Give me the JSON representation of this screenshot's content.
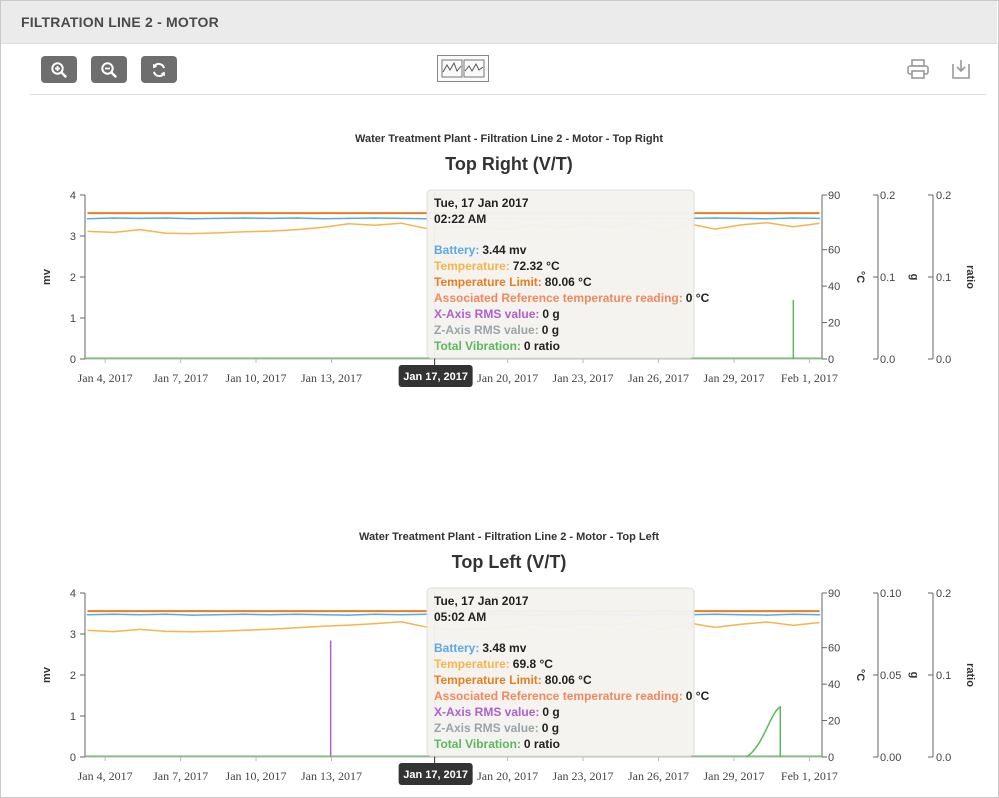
{
  "header": {
    "title": "FILTRATION LINE 2 - MOTOR"
  },
  "toolbar": {
    "zoom_in_icon": "zoom-in-icon",
    "zoom_out_icon": "zoom-out-icon",
    "refresh_icon": "refresh-icon",
    "chart_mode_icon": "line-chart-icon",
    "print_icon": "printer-icon",
    "download_icon": "download-icon"
  },
  "colors": {
    "battery": "#5aa9e6",
    "temperature": "#f6b44a",
    "temp_limit": "#e67e22",
    "reference": "#f08a5d",
    "x_axis": "#b060c8",
    "z_axis": "#9aa4a8",
    "vibration": "#5cb85c",
    "button_bg": "#6e6e6e"
  },
  "chart_data": [
    {
      "type": "line",
      "subtitle": "Water Treatment Plant - Filtration Line 2 - Motor - Top Right",
      "title": "Top Right (V/T)",
      "x_ticks": [
        "Jan 4, 2017",
        "Jan 7, 2017",
        "Jan 10, 2017",
        "Jan 13, 2017",
        "Jan 20, 2017",
        "Jan 23, 2017",
        "Jan 26, 2017",
        "Jan 29, 2017",
        "Feb 1, 2017"
      ],
      "crosshair_label": "Jan 17, 2017",
      "axes": {
        "mv": {
          "label": "mv",
          "range": [
            0,
            4
          ],
          "ticks": [
            "0",
            "1",
            "2",
            "3",
            "4"
          ]
        },
        "celsius": {
          "label": "°C",
          "range": [
            0,
            90
          ],
          "ticks": [
            "0",
            "20",
            "40",
            "60",
            "90"
          ]
        },
        "g": {
          "label": "g",
          "range": [
            0,
            0.2
          ],
          "ticks": [
            "0.0",
            "0.1",
            "0.2"
          ]
        },
        "ratio": {
          "label": "ratio",
          "range": [
            0,
            0.2
          ],
          "ticks": [
            "0.0",
            "0.1",
            "0.2"
          ]
        }
      },
      "series": [
        {
          "name": "Battery",
          "axis": "mv",
          "values": [
            3.42,
            3.44,
            3.43,
            3.44,
            3.42,
            3.43,
            3.44,
            3.43,
            3.44,
            3.42,
            3.43,
            3.44,
            3.43,
            3.42,
            3.44,
            3.43,
            3.44,
            3.42,
            3.43,
            3.44,
            3.43,
            3.42,
            3.44,
            3.43,
            3.44,
            3.43,
            3.42,
            3.44,
            3.43
          ]
        },
        {
          "name": "Temperature",
          "axis": "celsius",
          "values": [
            70,
            69.5,
            71,
            69,
            68.8,
            69.2,
            69.8,
            70.2,
            71,
            72.2,
            74.2,
            73.4,
            74.5,
            71.5,
            72.3,
            72.4,
            71.2,
            73.6,
            72,
            73.8,
            72.4,
            74.6,
            69.8,
            74.2,
            71.3,
            73.6,
            74.8,
            72.6,
            74.4
          ]
        },
        {
          "name": "Temperature Limit",
          "axis": "celsius",
          "values": [
            80.06,
            80.06,
            80.06,
            80.06,
            80.06,
            80.06,
            80.06,
            80.06,
            80.06,
            80.06,
            80.06,
            80.06,
            80.06,
            80.06,
            80.06,
            80.06,
            80.06,
            80.06,
            80.06,
            80.06,
            80.06,
            80.06,
            80.06,
            80.06,
            80.06,
            80.06,
            80.06,
            80.06,
            80.06
          ]
        },
        {
          "name": "Total Vibration",
          "axis": "ratio",
          "spike": {
            "date_index": 27,
            "value": 0.072
          }
        }
      ],
      "tooltip": {
        "date": "Tue, 17 Jan 2017",
        "time": "02:22 AM",
        "rows": [
          {
            "label": "Battery:",
            "value": "3.44 mv",
            "color": "#5aa9e6"
          },
          {
            "label": "Temperature:",
            "value": "72.32 °C",
            "color": "#f6b44a"
          },
          {
            "label": "Temperature Limit:",
            "value": "80.06 °C",
            "color": "#e67e22"
          },
          {
            "label": "Associated Reference temperature reading:",
            "value": "0 °C",
            "color": "#f08a5d"
          },
          {
            "label": "X-Axis RMS value:",
            "value": "0 g",
            "color": "#b060c8"
          },
          {
            "label": "Z-Axis RMS value:",
            "value": "0 g",
            "color": "#9aa4a8"
          },
          {
            "label": "Total Vibration:",
            "value": "0 ratio",
            "color": "#5cb85c"
          }
        ]
      }
    },
    {
      "type": "line",
      "subtitle": "Water Treatment Plant - Filtration Line 2 - Motor - Top Left",
      "title": "Top Left (V/T)",
      "x_ticks": [
        "Jan 4, 2017",
        "Jan 7, 2017",
        "Jan 10, 2017",
        "Jan 13, 2017",
        "Jan 20, 2017",
        "Jan 23, 2017",
        "Jan 26, 2017",
        "Jan 29, 2017",
        "Feb 1, 2017"
      ],
      "crosshair_label": "Jan 17, 2017",
      "axes": {
        "mv": {
          "label": "mv",
          "range": [
            0,
            4
          ],
          "ticks": [
            "0",
            "1",
            "2",
            "3",
            "4"
          ]
        },
        "celsius": {
          "label": "°C",
          "range": [
            0,
            90
          ],
          "ticks": [
            "0",
            "20",
            "40",
            "60",
            "90"
          ]
        },
        "g": {
          "label": "g",
          "range": [
            0,
            0.1
          ],
          "ticks": [
            "0.00",
            "0.05",
            "0.10"
          ]
        },
        "ratio": {
          "label": "ratio",
          "range": [
            0,
            0.2
          ],
          "ticks": [
            "0.0",
            "0.1",
            "0.2"
          ]
        }
      },
      "series": [
        {
          "name": "Battery",
          "axis": "mv",
          "values": [
            3.47,
            3.48,
            3.47,
            3.48,
            3.46,
            3.47,
            3.48,
            3.47,
            3.48,
            3.47,
            3.46,
            3.48,
            3.47,
            3.48,
            3.48,
            3.47,
            3.48,
            3.46,
            3.47,
            3.48,
            3.47,
            3.46,
            3.48,
            3.47,
            3.48,
            3.47,
            3.46,
            3.48,
            3.47
          ]
        },
        {
          "name": "Temperature",
          "axis": "celsius",
          "values": [
            69.5,
            68.8,
            70,
            68.9,
            68.7,
            69,
            69.6,
            70.1,
            70.9,
            71.8,
            72.4,
            73.2,
            74.2,
            71.2,
            69.8,
            70.4,
            71,
            72.8,
            71.5,
            73,
            72.1,
            73.9,
            69.7,
            73.6,
            71.1,
            72.9,
            74.1,
            72.2,
            73.8
          ]
        },
        {
          "name": "Temperature Limit",
          "axis": "celsius",
          "values": [
            80.06,
            80.06,
            80.06,
            80.06,
            80.06,
            80.06,
            80.06,
            80.06,
            80.06,
            80.06,
            80.06,
            80.06,
            80.06,
            80.06,
            80.06,
            80.06,
            80.06,
            80.06,
            80.06,
            80.06,
            80.06,
            80.06,
            80.06,
            80.06,
            80.06,
            80.06,
            80.06,
            80.06,
            80.06
          ]
        },
        {
          "name": "X-Axis RMS value",
          "axis": "g",
          "spike": {
            "date_index": 9.3,
            "value": 0.071
          }
        },
        {
          "name": "Total Vibration",
          "axis": "ratio",
          "ramp": {
            "start_index": 25.2,
            "end_index": 26.5,
            "value": 0.061
          }
        }
      ],
      "tooltip": {
        "date": "Tue, 17 Jan 2017",
        "time": "05:02 AM",
        "rows": [
          {
            "label": "Battery:",
            "value": "3.48 mv",
            "color": "#5aa9e6"
          },
          {
            "label": "Temperature:",
            "value": "69.8 °C",
            "color": "#f6b44a"
          },
          {
            "label": "Temperature Limit:",
            "value": "80.06 °C",
            "color": "#e67e22"
          },
          {
            "label": "Associated Reference temperature reading:",
            "value": "0 °C",
            "color": "#f08a5d"
          },
          {
            "label": "X-Axis RMS value:",
            "value": "0 g",
            "color": "#b060c8"
          },
          {
            "label": "Z-Axis RMS value:",
            "value": "0 g",
            "color": "#9aa4a8"
          },
          {
            "label": "Total Vibration:",
            "value": "0 ratio",
            "color": "#5cb85c"
          }
        ]
      }
    }
  ]
}
